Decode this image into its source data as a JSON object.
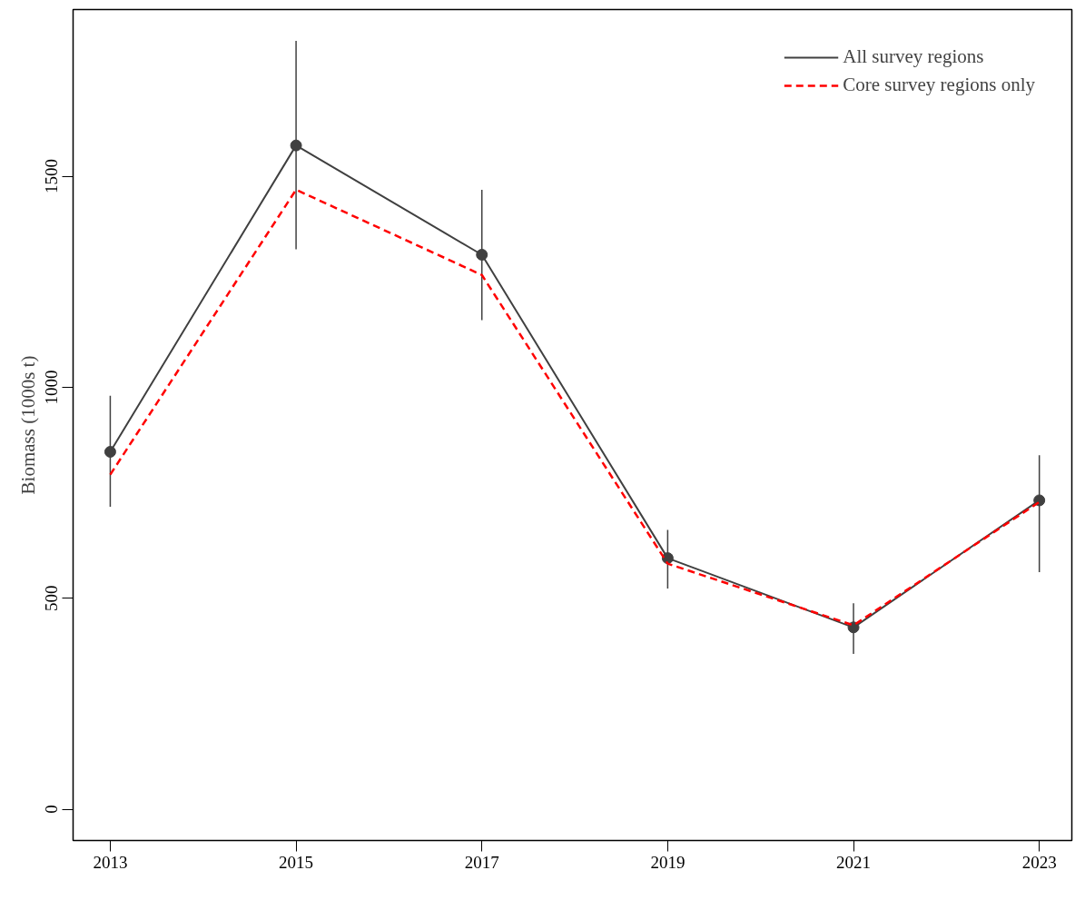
{
  "chart_data": {
    "type": "line",
    "ylabel": "Biomass (1000s t)",
    "x": [
      2013,
      2015,
      2017,
      2019,
      2021,
      2023
    ],
    "xlim": [
      2012.6,
      2023.35
    ],
    "ylim": [
      -74,
      1895
    ],
    "xticks": [
      2013,
      2015,
      2017,
      2019,
      2021,
      2023
    ],
    "yticks": [
      0,
      500,
      1000,
      1500
    ],
    "grid": false,
    "legend": "top right",
    "series": [
      {
        "name": "All survey regions",
        "color": "#404040",
        "marker": "circle",
        "line_style": "solid",
        "values": [
          847,
          1573,
          1314,
          595,
          431,
          732
        ],
        "errors": [
          [
            717,
            980
          ],
          [
            1327,
            1821
          ],
          [
            1159,
            1468
          ],
          [
            523,
            662
          ],
          [
            368,
            488
          ],
          [
            562,
            839
          ]
        ]
      },
      {
        "name": "Core survey regions only",
        "color": "#ff0000",
        "marker": "none",
        "line_style": "dashed",
        "values": [
          793,
          1468,
          1266,
          582,
          436,
          728
        ]
      }
    ]
  }
}
